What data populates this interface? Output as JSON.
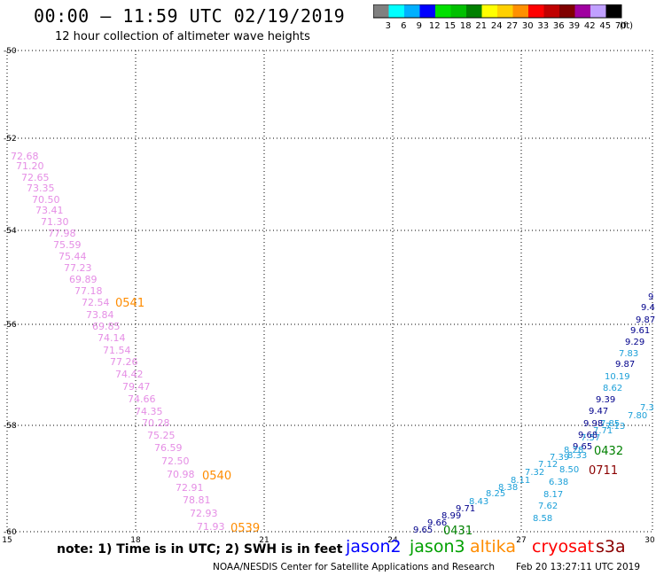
{
  "header": {
    "title": "00:00 – 11:59 UTC 02/19/2019",
    "subtitle": "12 hour collection of altimeter wave heights"
  },
  "color_scale": {
    "bins": [
      {
        "color": "#808080",
        "label": "3"
      },
      {
        "color": "#00ffff",
        "label": "6"
      },
      {
        "color": "#00b0ff",
        "label": "9"
      },
      {
        "color": "#0000ff",
        "label": "12"
      },
      {
        "color": "#00e000",
        "label": "15"
      },
      {
        "color": "#00c000",
        "label": "18"
      },
      {
        "color": "#008000",
        "label": "21"
      },
      {
        "color": "#ffff00",
        "label": "24"
      },
      {
        "color": "#ffd000",
        "label": "27"
      },
      {
        "color": "#ff9000",
        "label": "30"
      },
      {
        "color": "#ff0000",
        "label": "33"
      },
      {
        "color": "#c00000",
        "label": "36"
      },
      {
        "color": "#800000",
        "label": "39"
      },
      {
        "color": "#a000a0",
        "label": "42"
      },
      {
        "color": "#c0a0ff",
        "label": "45"
      },
      {
        "color": "#000000",
        "label": "70"
      }
    ],
    "unit": "(ft)"
  },
  "axes": {
    "x_ticks": [
      "15",
      "18",
      "21",
      "24",
      "27",
      "30"
    ],
    "y_ticks": [
      "-50",
      "-52",
      "-54",
      "-56",
      "-58",
      "-60"
    ]
  },
  "tracks": [
    {
      "color": "#e58ee5",
      "time_label": {
        "text": "0541",
        "color": "#ff8c00"
      },
      "time_label_2": {
        "text": "0540",
        "color": "#ff8c00"
      },
      "time_label_3": {
        "text": "0539",
        "color": "#ff8c00"
      },
      "values": [
        "72.68",
        "71.20",
        "72.65",
        "73.35",
        "70.50",
        "73.41",
        "71.30",
        "77.98",
        "75.59",
        "75.44",
        "77.23",
        "69.89",
        "77.18",
        "72.54",
        "73.84",
        "69.85",
        "74.14",
        "71.54",
        "77.26",
        "74.42",
        "79.47",
        "74.66",
        "74.35",
        "70.28",
        "75.25",
        "76.59",
        "72.50",
        "70.98",
        "72.91",
        "78.81",
        "72.93",
        "71.93"
      ]
    },
    {
      "color": "#1a9fd8",
      "values": [
        "8.58",
        "7.62",
        "8.17",
        "6.38",
        "8.50",
        "7.39",
        "7.12",
        "7.32",
        "8.11",
        "8.38",
        "8.25",
        "8.43",
        "7.71",
        "7.13",
        "7.57",
        "7.85",
        "7.80",
        "7.3"
      ]
    },
    {
      "color": "#00008b",
      "values": [
        "9.65",
        "9.66",
        "8.99",
        "9.71",
        "9.65",
        "9.68",
        "9.98",
        "9.47",
        "9.39",
        "9.87",
        "9.29",
        "9.61",
        "9.87",
        "9.4",
        "9"
      ]
    },
    {
      "color": "#1a9fd8",
      "values": [
        "8.33",
        "8.28",
        "7.83",
        "8.62",
        "10.19"
      ]
    }
  ],
  "time_labels": [
    {
      "text": "0431",
      "color": "#008000"
    },
    {
      "text": "0432",
      "color": "#008000"
    },
    {
      "text": "0711",
      "color": "#8b0000"
    }
  ],
  "footer": {
    "note": "note:  1) Time is in UTC;  2) SWH is in feet",
    "satellites": [
      {
        "name": "jason2",
        "color": "#0000ff"
      },
      {
        "name": "jason3",
        "color": "#00a000"
      },
      {
        "name": "altika",
        "color": "#ff8c00"
      },
      {
        "name": "cryosat",
        "color": "#ff0000"
      },
      {
        "name": "s3a",
        "color": "#8b0000"
      }
    ],
    "credit": "NOAA/NESDIS Center for Satellite Applications and Research",
    "timestamp": "Feb 20 13:27:11 UTC 2019"
  }
}
